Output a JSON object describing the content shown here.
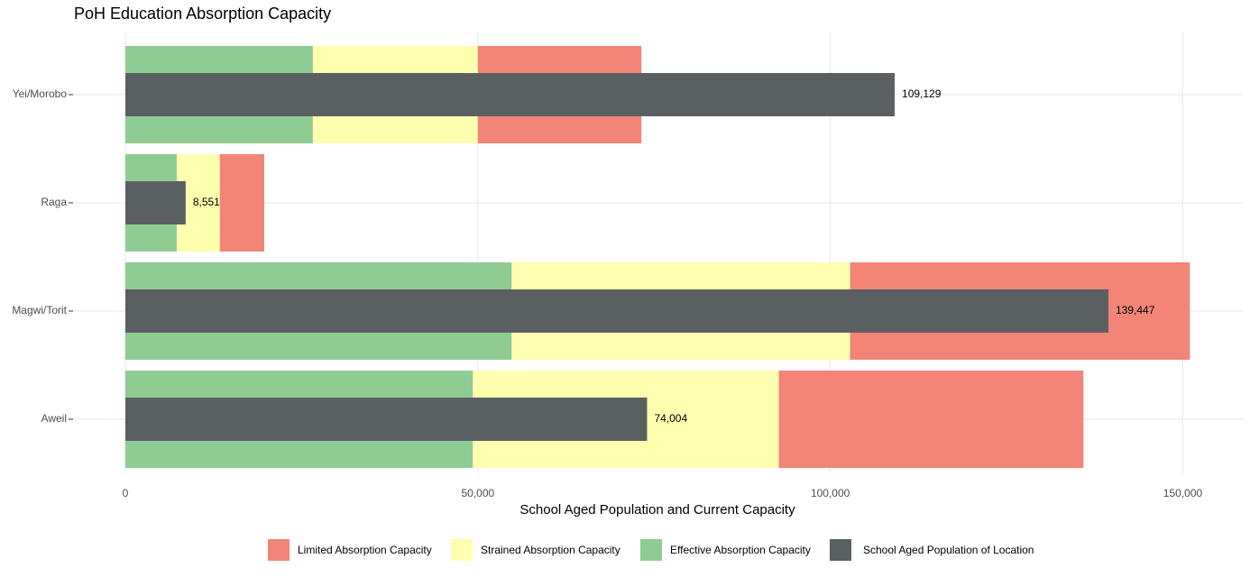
{
  "chart_data": {
    "type": "bar",
    "title": "PoH Education Absorption Capacity",
    "x_label": "School Aged Population and Current Capacity",
    "categories": [
      "Yei/Morobo",
      "Raga",
      "Magwi/Torit",
      "Aweil"
    ],
    "series": [
      {
        "name": "Limited Absorption Capacity",
        "color": "#f28577",
        "values": [
          23200,
          6300,
          48200,
          43200
        ]
      },
      {
        "name": "Strained Absorption Capacity",
        "color": "#ffffb0",
        "values": [
          23400,
          6100,
          48000,
          43400
        ]
      },
      {
        "name": "Effective Absorption Capacity",
        "color": "#8fcc94",
        "values": [
          26600,
          7300,
          54800,
          49300
        ]
      }
    ],
    "population": {
      "name": "School Aged Population of Location",
      "color": "#5a6062",
      "values": [
        109129,
        8551,
        139447,
        74004
      ],
      "value_labels": [
        "109,129",
        "8,551",
        "139,447",
        "74,004"
      ]
    },
    "xlim": [
      -7548,
      158508
    ],
    "xticks": [
      0,
      {
        "value": 50000,
        "label": "50,000"
      },
      {
        "value": 100000,
        "label": "100,000"
      },
      {
        "value": 150000,
        "label": "150,000"
      }
    ],
    "grid": true,
    "legend": "bottom"
  }
}
